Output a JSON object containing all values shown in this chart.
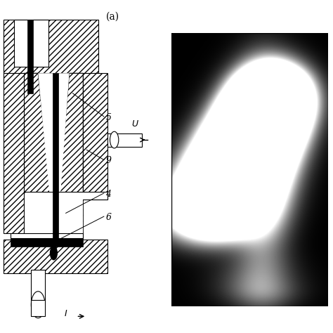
{
  "fig_width": 4.74,
  "fig_height": 4.74,
  "dpi": 100,
  "bg_color": "#ffffff",
  "label_a": "(a)",
  "line_color": "#000000",
  "lw": 0.8
}
